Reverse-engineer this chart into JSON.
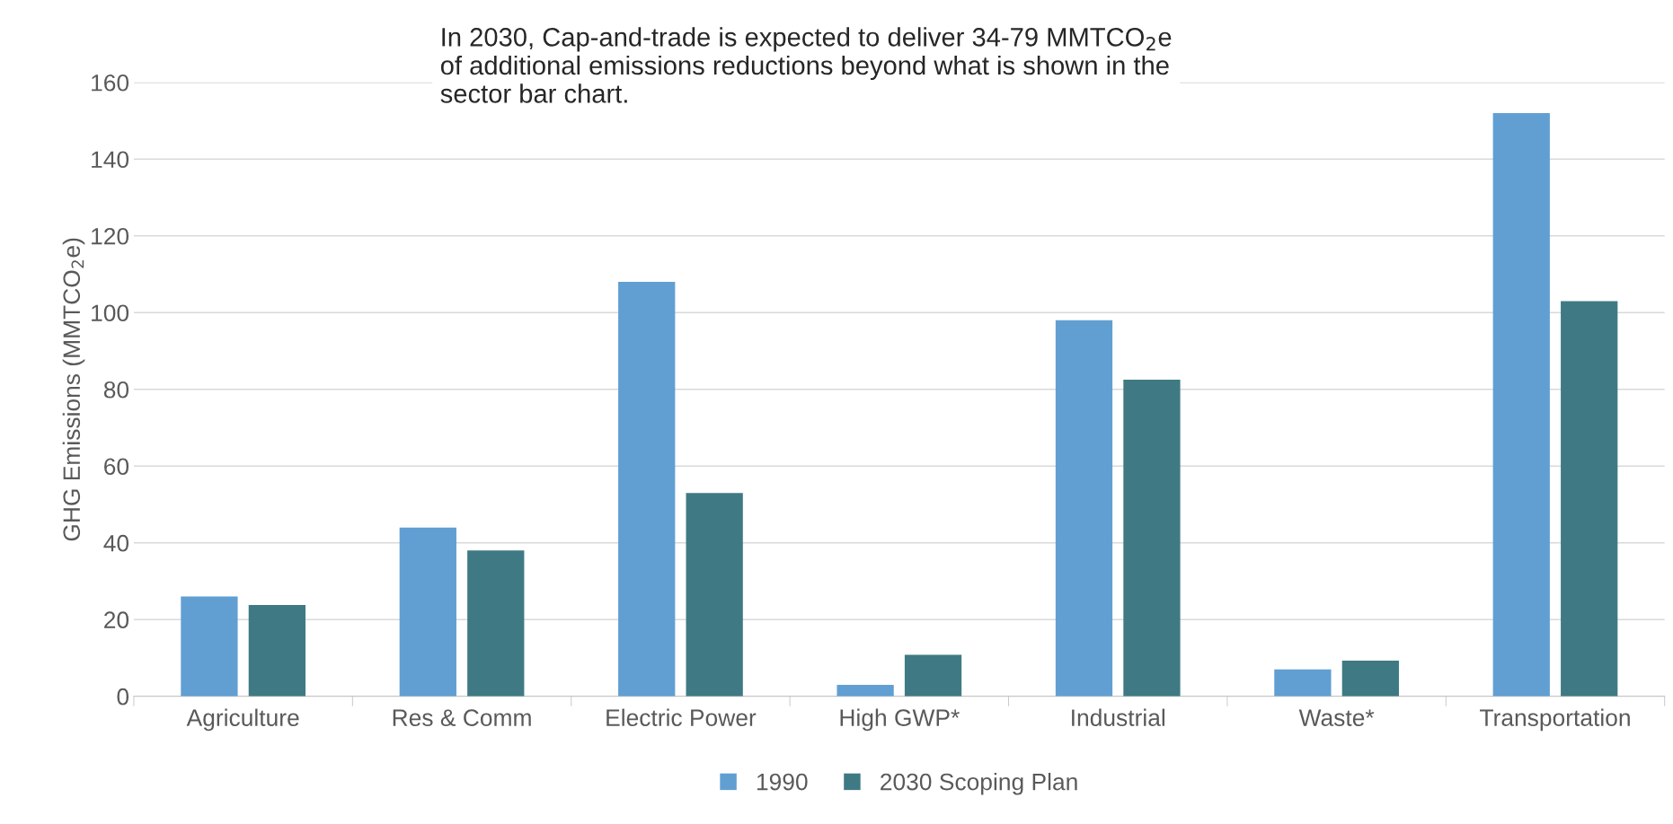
{
  "chart_data": {
    "type": "bar",
    "ylabel": "GHG Emissions (MMTCO$_{2}$e)",
    "categories": [
      "Agriculture",
      "Res & Comm",
      "Electric Power",
      "High GWP*",
      "Industrial",
      "Waste*",
      "Transportation"
    ],
    "series": [
      {
        "name": "1990",
        "color": "#619fd3",
        "values": [
          26,
          44,
          108,
          3,
          98,
          7,
          152
        ]
      },
      {
        "name": "2030 Scoping Plan",
        "color": "#3f7a84",
        "values": [
          23.8,
          38,
          53,
          10.8,
          82.5,
          9.3,
          103
        ]
      }
    ],
    "ylim": [
      0,
      160
    ],
    "yticks": [
      0,
      20,
      40,
      60,
      80,
      100,
      120,
      140,
      160
    ],
    "grid": "y",
    "legend": "bottom",
    "annotations": [
      "In 2030, Cap-and-trade is expected to deliver 34-79 MMTCO$_{2}$e\nof additional emissions reductions beyond what is shown in the\nsector bar chart."
    ]
  }
}
